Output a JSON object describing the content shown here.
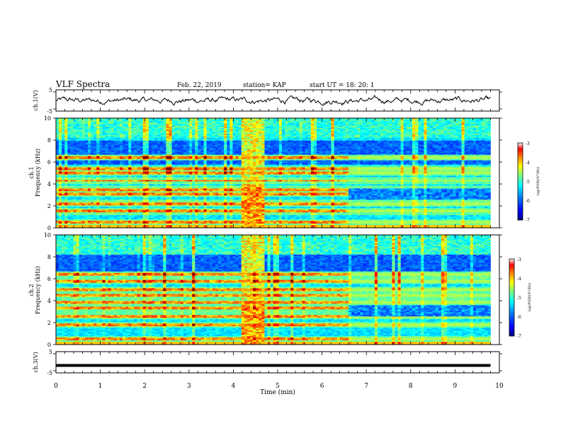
{
  "header": {
    "title": "VLF Spectra",
    "date": "Feb. 22, 2019",
    "station": "station= KAP",
    "start": "start  UT =   18: 20: 1"
  },
  "colors": {
    "background": "#ffffff",
    "axis": "#000000",
    "trace": "#000000",
    "colormap": [
      "#00007f",
      "#0000ff",
      "#007fff",
      "#00ffff",
      "#7fff7f",
      "#ffff00",
      "#ff7f00",
      "#ff0000",
      "#7f0000"
    ]
  },
  "chart_data": [
    {
      "type": "line",
      "panel": "ch1-waveform",
      "ylabel": "ch.1(V)",
      "ylim": [
        -5,
        5
      ],
      "yticks": [
        "5",
        "-5"
      ],
      "xlim": [
        0,
        10
      ],
      "x_end_min": 9.8,
      "description": "noisy waveform fluctuating around 0 V, mostly within -2..+2 V"
    },
    {
      "type": "heatmap",
      "panel": "ch1-spectrogram",
      "ylabel": "ch.1",
      "ylabel2": "Frequency (kHz)",
      "ylim": [
        0,
        10
      ],
      "yticks": [
        "0",
        "2",
        "4",
        "6",
        "8",
        "10"
      ],
      "xlim": [
        0,
        10
      ],
      "data_end_min": 9.8,
      "colorbar": {
        "label": "log(PSD)(V²/Hz)",
        "range": [
          -7,
          -3
        ],
        "ticks": [
          "-3",
          "-4",
          "-5",
          "-6",
          "-7"
        ]
      },
      "features": {
        "broadband_burst_min": [
          4.2,
          4.68
        ],
        "strong_lines_khz": [
          0.5,
          1.5,
          2.2,
          3.1,
          3.5,
          4.3,
          5.0,
          5.4,
          6.4
        ],
        "quiet_band_khz": [
          5.8,
          8.0
        ],
        "change_at_min": 6.6
      }
    },
    {
      "type": "heatmap",
      "panel": "ch2-spectrogram",
      "ylabel": "ch.2",
      "ylabel2": "Frequency (kHz)",
      "ylim": [
        0,
        10
      ],
      "yticks": [
        "0",
        "2",
        "4",
        "6",
        "8",
        "10"
      ],
      "xlim": [
        0,
        10
      ],
      "data_end_min": 9.8,
      "colorbar": {
        "label": "log(PSD)(V²/Hz)",
        "range": [
          -7,
          -3
        ],
        "ticks": [
          "-3",
          "-4",
          "-5",
          "-6",
          "-7"
        ]
      },
      "features": {
        "broadband_burst_min": [
          4.2,
          4.68
        ],
        "strong_lines_khz": [
          0.5,
          1.8,
          2.6,
          3.3,
          3.9,
          4.5,
          5.0,
          5.8,
          6.4
        ],
        "quiet_band_khz": [
          6.5,
          8.3
        ],
        "change_at_min": 6.6
      }
    },
    {
      "type": "line",
      "panel": "ch3-waveform",
      "ylabel": "ch.3(V)",
      "ylim": [
        -5,
        5
      ],
      "yticks": [
        "5",
        "-5"
      ],
      "xlim": [
        0,
        10
      ],
      "x_end_min": 9.8,
      "values_constant_v": -1.5
    }
  ],
  "xaxis": {
    "label": "Time (min)",
    "ticks": [
      "0",
      "1",
      "2",
      "3",
      "4",
      "5",
      "6",
      "7",
      "8",
      "9",
      "10"
    ]
  }
}
